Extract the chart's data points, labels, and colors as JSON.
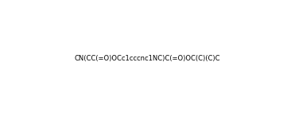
{
  "smiles": "CN(CC(=O)OCc1cccnc1NC)C(=O)OC(C)(C)C",
  "title": "",
  "background_color": "#ffffff",
  "line_color": "#000000",
  "figsize": [
    3.71,
    1.47
  ],
  "dpi": 100
}
